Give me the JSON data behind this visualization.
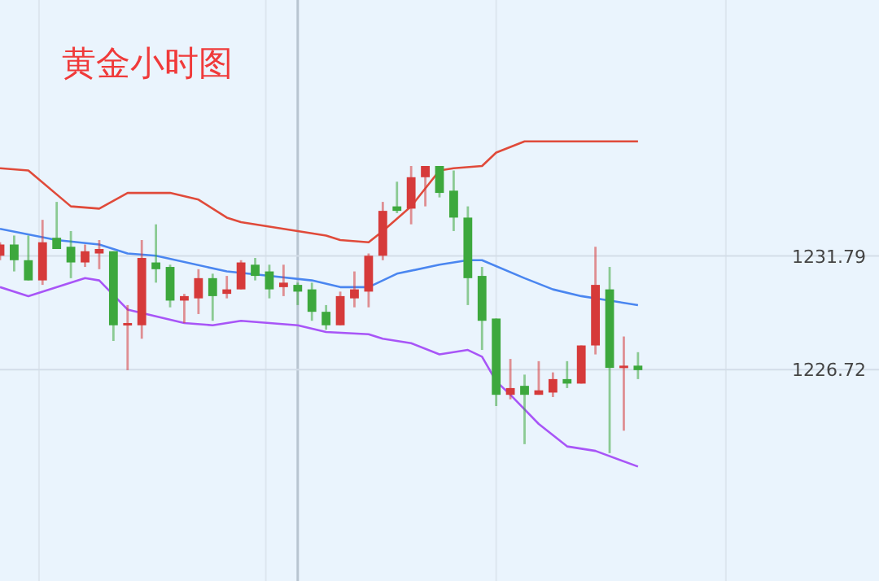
{
  "chart_data": {
    "type": "candlestick",
    "title": "黄金小时图",
    "categories": [
      null,
      null,
      null,
      null,
      null,
      null,
      null,
      null,
      null,
      null,
      null,
      null,
      null,
      null,
      null,
      null,
      null,
      null,
      null,
      null,
      null,
      null,
      null,
      null,
      null,
      null,
      null,
      null,
      null,
      null,
      null,
      null,
      null,
      null,
      null,
      null,
      null,
      null,
      null,
      null,
      null,
      null,
      null,
      null,
      null,
      null,
      null,
      null,
      null,
      null,
      null,
      null,
      null,
      null,
      null,
      null,
      null,
      null,
      null,
      null,
      null,
      null,
      null
    ],
    "ohlc": [
      [
        1231.8,
        1232.4,
        1231.6,
        1232.3
      ],
      [
        1232.3,
        1232.7,
        1231.1,
        1231.6
      ],
      [
        1231.6,
        1232.7,
        1230.7,
        1230.7
      ],
      [
        1230.7,
        1233.4,
        1230.5,
        1232.4
      ],
      [
        1232.6,
        1234.2,
        1232.1,
        1232.1
      ],
      [
        1232.2,
        1232.9,
        1230.8,
        1231.5
      ],
      [
        1231.5,
        1232.3,
        1231.3,
        1232.0
      ],
      [
        1231.9,
        1232.5,
        1231.2,
        1232.1
      ],
      [
        1232.0,
        1232.0,
        1228.0,
        1228.7
      ],
      [
        1228.7,
        1229.6,
        1226.7,
        1228.8
      ],
      [
        1228.7,
        1232.5,
        1228.1,
        1231.7
      ],
      [
        1231.5,
        1233.2,
        1230.6,
        1231.2
      ],
      [
        1231.3,
        1231.4,
        1229.5,
        1229.8
      ],
      [
        1229.8,
        1230.1,
        1228.8,
        1230.0
      ],
      [
        1229.9,
        1231.2,
        1229.2,
        1230.8
      ],
      [
        1230.8,
        1231.0,
        1228.9,
        1230.0
      ],
      [
        1230.1,
        1230.9,
        1229.9,
        1230.3
      ],
      [
        1230.3,
        1231.6,
        1230.3,
        1231.5
      ],
      [
        1231.4,
        1231.7,
        1230.7,
        1230.9
      ],
      [
        1231.1,
        1231.4,
        1229.9,
        1230.3
      ],
      [
        1230.4,
        1231.4,
        1230.0,
        1230.6
      ],
      [
        1230.5,
        1230.6,
        1229.6,
        1230.2
      ],
      [
        1230.3,
        1230.6,
        1228.9,
        1229.3
      ],
      [
        1229.3,
        1229.6,
        1228.5,
        1228.7
      ],
      [
        1228.7,
        1230.2,
        1228.7,
        1230.0
      ],
      [
        1229.9,
        1231.1,
        1229.5,
        1230.3
      ],
      [
        1230.2,
        1231.9,
        1229.5,
        1231.8
      ],
      [
        1231.8,
        1234.2,
        1231.6,
        1233.8
      ],
      [
        1234.0,
        1235.1,
        1233.7,
        1233.8
      ],
      [
        1233.9,
        1235.8,
        1233.2,
        1235.3
      ],
      [
        1235.3,
        1235.8,
        1234.0,
        1235.8
      ],
      [
        1235.8,
        1235.8,
        1234.4,
        1234.6
      ],
      [
        1234.7,
        1235.6,
        1232.9,
        1233.5
      ],
      [
        1233.5,
        1234.0,
        1229.6,
        1230.8
      ],
      [
        1230.9,
        1231.3,
        1227.6,
        1228.9
      ],
      [
        1229.0,
        1229.0,
        1225.1,
        1225.6
      ],
      [
        1225.6,
        1227.2,
        1225.4,
        1225.9
      ],
      [
        1226.0,
        1226.5,
        1223.4,
        1225.6
      ],
      [
        1225.6,
        1227.1,
        1225.6,
        1225.8
      ],
      [
        1225.7,
        1226.6,
        1225.5,
        1226.3
      ],
      [
        1226.3,
        1227.1,
        1225.9,
        1226.1
      ],
      [
        1226.1,
        1227.8,
        1226.1,
        1227.8
      ],
      [
        1227.8,
        1232.2,
        1227.4,
        1230.5
      ],
      [
        1230.3,
        1231.3,
        1223.0,
        1226.8
      ],
      [
        1226.8,
        1228.2,
        1224.0,
        1226.9
      ],
      [
        1226.9,
        1227.5,
        1226.3,
        1226.7
      ],
      null,
      null,
      null,
      null,
      null,
      null,
      null,
      null,
      null,
      null,
      null,
      null,
      null,
      null,
      null,
      null,
      null
    ],
    "colors": [
      "#d63a3a",
      "#3da83d",
      "#3da83d",
      "#d63a3a",
      "#3da83d",
      "#3da83d",
      "#d63a3a",
      "#d63a3a",
      "#3da83d",
      "#d63a3a",
      "#d63a3a",
      "#3da83d",
      "#3da83d",
      "#d63a3a",
      "#d63a3a",
      "#3da83d",
      "#d63a3a",
      "#d63a3a",
      "#3da83d",
      "#3da83d",
      "#d63a3a",
      "#3da83d",
      "#3da83d",
      "#3da83d",
      "#d63a3a",
      "#d63a3a",
      "#d63a3a",
      "#d63a3a",
      "#3da83d",
      "#d63a3a",
      "#d63a3a",
      "#3da83d",
      "#3da83d",
      "#3da83d",
      "#3da83d",
      "#3da83d",
      "#d63a3a",
      "#3da83d",
      "#d63a3a",
      "#d63a3a",
      "#3da83d",
      "#d63a3a",
      "#d63a3a",
      "#3da83d",
      "#d63a3a",
      "#3da83d",
      null,
      null,
      null,
      null,
      null,
      null,
      null,
      null,
      null,
      null,
      null,
      null,
      null,
      null,
      null,
      null,
      null
    ],
    "series": [
      {
        "type": "line",
        "color": "#e04a3a",
        "values": [
          1235.7,
          null,
          1235.6,
          null,
          null,
          1234.0,
          null,
          1233.9,
          null,
          1234.6,
          null,
          null,
          1234.6,
          null,
          1234.3,
          null,
          1233.5,
          1233.3,
          null,
          null,
          null,
          1232.9,
          null,
          1232.7,
          1232.5,
          null,
          1232.4,
          1232.9,
          null,
          1234.0,
          null,
          1235.6,
          1235.7,
          null,
          1235.8,
          1236.4,
          null,
          1236.9,
          null,
          1236.9,
          null,
          1236.9,
          null,
          null,
          null,
          1236.9,
          null,
          null,
          null,
          null,
          null,
          null,
          null,
          null,
          null,
          null,
          null,
          null,
          null,
          null,
          null,
          null,
          null
        ]
      },
      {
        "type": "line",
        "color": "#4a86f0",
        "values": [
          1233.0,
          null,
          null,
          null,
          1232.5,
          null,
          null,
          1232.3,
          null,
          1231.9,
          null,
          1231.8,
          null,
          null,
          null,
          null,
          1231.1,
          null,
          null,
          1230.9,
          null,
          null,
          1230.7,
          null,
          1230.4,
          null,
          1230.4,
          null,
          1231.0,
          null,
          null,
          1231.4,
          null,
          1231.6,
          1231.6,
          null,
          null,
          1230.8,
          null,
          1230.3,
          null,
          1230.0,
          null,
          null,
          null,
          1229.6,
          null,
          null,
          null,
          null,
          null,
          null,
          null,
          null,
          null,
          null,
          null,
          null,
          null,
          null,
          null,
          null,
          null
        ]
      },
      {
        "type": "line",
        "color": "#a855f7",
        "values": [
          1230.4,
          null,
          1230.0,
          null,
          null,
          null,
          1230.8,
          1230.7,
          null,
          1229.4,
          null,
          null,
          null,
          1228.8,
          null,
          1228.7,
          null,
          1228.9,
          null,
          null,
          null,
          1228.7,
          null,
          1228.4,
          null,
          null,
          1228.3,
          1228.1,
          null,
          1227.9,
          null,
          1227.4,
          null,
          1227.6,
          1227.3,
          1226.2,
          1225.6,
          null,
          1224.3,
          null,
          1223.3,
          null,
          1223.1,
          null,
          null,
          1222.4,
          null,
          null,
          null,
          null,
          null,
          null,
          null,
          null,
          null,
          null,
          null,
          null,
          null,
          null,
          null,
          null,
          null
        ]
      }
    ],
    "ylim": [
      1217.3,
      1243.2
    ],
    "yticks": [
      1231.79,
      1226.72
    ],
    "grid": true,
    "tick_labels": "y"
  }
}
